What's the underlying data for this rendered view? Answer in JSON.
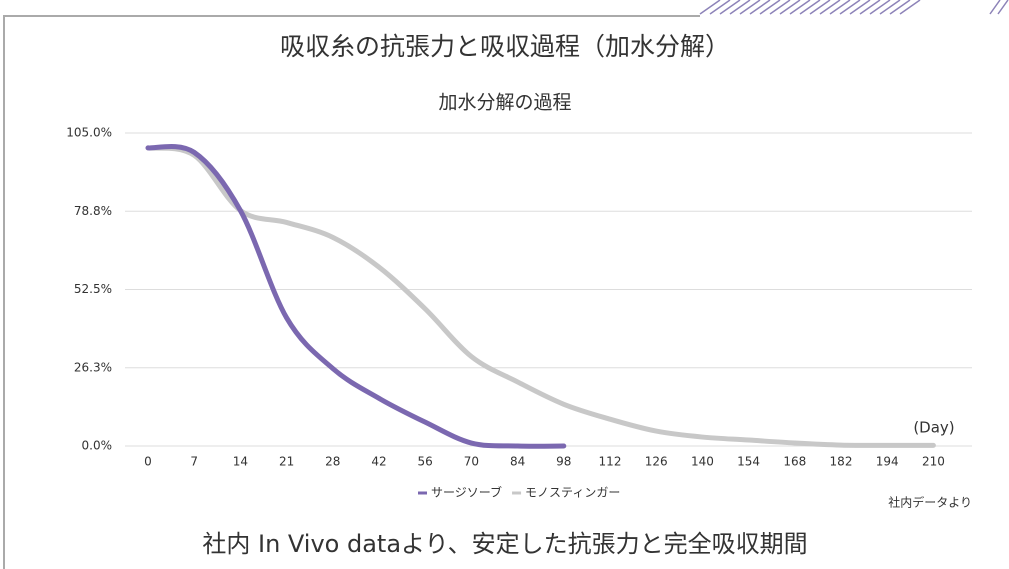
{
  "heading": "吸収糸の抗張力と吸収過程（加水分解）",
  "chart_data": {
    "type": "line",
    "title": "加水分解の過程",
    "categories": [
      "0",
      "7",
      "14",
      "21",
      "28",
      "42",
      "56",
      "70",
      "84",
      "98",
      "112",
      "126",
      "140",
      "154",
      "168",
      "182",
      "194",
      "210"
    ],
    "series": [
      {
        "name": "サージソーブ",
        "color": "#7b68b0",
        "values": [
          100,
          98.5,
          79,
          43,
          26,
          16,
          8,
          1,
          0,
          0,
          null,
          null,
          null,
          null,
          null,
          null,
          null,
          null
        ]
      },
      {
        "name": "モノスティンガー",
        "color": "#c8c8c8",
        "values": [
          100,
          97.5,
          79,
          75,
          70,
          60,
          46,
          30,
          21.5,
          14,
          9,
          5,
          3,
          2,
          1,
          0.3,
          0.2,
          0.2
        ]
      }
    ],
    "ylim": [
      0,
      105
    ],
    "yticks": [
      {
        "value": 0,
        "label": "0.0%"
      },
      {
        "value": 26.25,
        "label": "26.3%"
      },
      {
        "value": 52.5,
        "label": "52.5%"
      },
      {
        "value": 78.75,
        "label": "78.8%"
      },
      {
        "value": 105,
        "label": "105.0%"
      }
    ],
    "grid": true,
    "legend": "bottom",
    "x_unit_label": "(Day)",
    "source": "社内データより"
  },
  "footer": "社内 In Vivo dataより、安定した抗張力と完全吸収期間"
}
